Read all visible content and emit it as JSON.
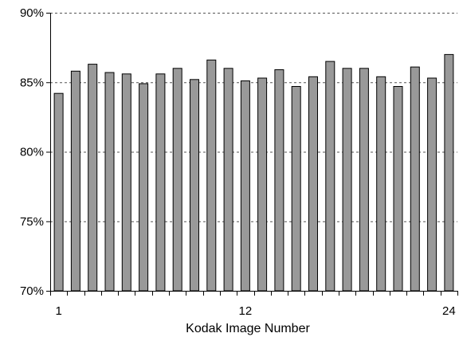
{
  "chart_data": {
    "type": "bar",
    "title": "",
    "xlabel": "Kodak Image Number",
    "ylabel": "",
    "ylim": [
      70,
      90
    ],
    "yticks": [
      70,
      75,
      80,
      85,
      90
    ],
    "ytick_labels": [
      "70%",
      "75%",
      "80%",
      "85%",
      "90%"
    ],
    "xtick_labels": [
      {
        "index": 1,
        "label": "1"
      },
      {
        "index": 12,
        "label": "12"
      },
      {
        "index": 24,
        "label": "24"
      }
    ],
    "categories": [
      1,
      2,
      3,
      4,
      5,
      6,
      7,
      8,
      9,
      10,
      11,
      12,
      13,
      14,
      15,
      16,
      17,
      18,
      19,
      20,
      21,
      22,
      23,
      24
    ],
    "values": [
      84.2,
      85.8,
      86.3,
      85.7,
      85.6,
      84.9,
      85.6,
      86.0,
      85.2,
      86.6,
      86.0,
      85.1,
      85.3,
      85.9,
      84.7,
      85.4,
      86.5,
      86.0,
      86.0,
      85.4,
      84.7,
      86.1,
      85.3,
      87.0
    ],
    "grid": "dashed horizontal",
    "colors": {
      "bar_fill": "#999999",
      "bar_stroke": "#000000",
      "grid": "#555555"
    }
  }
}
